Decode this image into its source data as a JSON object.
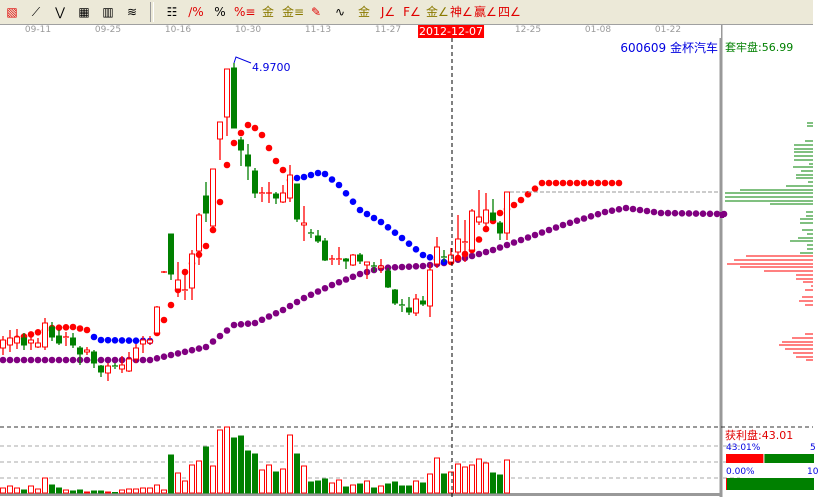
{
  "toolbar": {
    "icons": [
      {
        "name": "draw-tools-icon",
        "glyph": "▧",
        "color": "red"
      },
      {
        "name": "fan-lines-icon",
        "glyph": "⟋",
        "color": ""
      },
      {
        "name": "zigzag-icon",
        "glyph": "⋁",
        "color": ""
      },
      {
        "name": "grid-icon",
        "glyph": "▦",
        "color": ""
      },
      {
        "name": "grid-arrow-icon",
        "glyph": "▥",
        "color": ""
      },
      {
        "name": "parallel-lines-icon",
        "glyph": "≋",
        "color": ""
      },
      {
        "name": "price-table-icon",
        "glyph": "☷",
        "color": ""
      },
      {
        "name": "percent-chart-icon",
        "glyph": "∕%",
        "color": "red"
      },
      {
        "name": "percent-icon",
        "glyph": "%",
        "color": ""
      },
      {
        "name": "percent-lines-icon",
        "glyph": "%≡",
        "color": "red"
      },
      {
        "name": "gold-circle-icon",
        "glyph": "金",
        "color": "gold"
      },
      {
        "name": "gold-lines-icon",
        "glyph": "金≡",
        "color": "gold"
      },
      {
        "name": "marker-icon",
        "glyph": "✎",
        "color": "red"
      },
      {
        "name": "sine-wave-icon",
        "glyph": "∿",
        "color": ""
      },
      {
        "name": "gold-box-icon",
        "glyph": "金",
        "color": "gold"
      },
      {
        "name": "j-fan-icon",
        "glyph": "J∠",
        "color": "red"
      },
      {
        "name": "f-fan-icon",
        "glyph": "F∠",
        "color": "red"
      },
      {
        "name": "gold-fan-icon",
        "glyph": "金∠",
        "color": "gold"
      },
      {
        "name": "shen-fan-icon",
        "glyph": "神∠",
        "color": "red"
      },
      {
        "name": "ying-fan-icon",
        "glyph": "赢∠",
        "color": "red"
      },
      {
        "name": "four-fan-icon",
        "glyph": "四∠",
        "color": "red"
      }
    ]
  },
  "dates": [
    "09-11",
    "09-25",
    "10-16",
    "10-30",
    "11-13",
    "11-27",
    "2012-12-07",
    "12-25",
    "01-08",
    "01-22"
  ],
  "header": {
    "stock": "600609  金杯汽车",
    "trapped": "套牢盘:56.99"
  },
  "annotation": {
    "high_label": "4.9700"
  },
  "chips_panel": {
    "profit_label": "获利盘:43.01",
    "profit_pct": "43.01%",
    "profit_pct_right": "5",
    "zero_pct": "0.00%",
    "zero_pct_right": "10",
    "profit_fraction": 0.4301,
    "zero_fraction": 0.0
  },
  "colors": {
    "up": "#ff0000",
    "down": "#008000",
    "sar_up": "#ff0000",
    "sar_down": "#0000ff",
    "ma": "#800080",
    "annotation": "#0000e0"
  },
  "chart_data": {
    "type": "candlestick",
    "ohlc": [
      [
        2.12,
        2.24,
        2.05,
        2.2
      ],
      [
        2.15,
        2.3,
        2.08,
        2.22
      ],
      [
        2.17,
        2.31,
        2.11,
        2.23
      ],
      [
        2.22,
        2.27,
        2.1,
        2.15
      ],
      [
        2.17,
        2.27,
        2.1,
        2.2
      ],
      [
        2.13,
        2.22,
        2.12,
        2.17
      ],
      [
        2.13,
        2.42,
        2.1,
        2.37
      ],
      [
        2.33,
        2.38,
        2.19,
        2.23
      ],
      [
        2.24,
        2.3,
        2.15,
        2.17
      ],
      [
        2.22,
        2.28,
        2.14,
        2.23
      ],
      [
        2.22,
        2.27,
        2.12,
        2.15
      ],
      [
        2.12,
        2.14,
        1.95,
        2.06
      ],
      [
        2.08,
        2.13,
        2.05,
        2.1
      ],
      [
        2.08,
        2.1,
        1.92,
        1.97
      ],
      [
        1.94,
        1.95,
        1.83,
        1.88
      ],
      [
        1.87,
        1.97,
        1.79,
        1.94
      ],
      [
        1.94,
        1.97,
        1.91,
        1.93
      ],
      [
        1.91,
        2.04,
        1.87,
        1.95
      ],
      [
        1.89,
        2.08,
        1.88,
        2.01
      ],
      [
        2.01,
        2.16,
        1.97,
        2.12
      ],
      [
        2.16,
        2.24,
        2.07,
        2.2
      ],
      [
        2.17,
        2.24,
        2.15,
        2.2
      ],
      [
        2.27,
        2.54,
        2.25,
        2.53
      ],
      [
        2.88,
        2.89,
        2.87,
        2.88
      ],
      [
        3.26,
        3.26,
        2.8,
        2.86
      ],
      [
        2.71,
        2.98,
        2.63,
        2.8
      ],
      [
        2.69,
        2.86,
        2.6,
        2.7
      ],
      [
        2.72,
        3.1,
        2.6,
        3.06
      ],
      [
        3.09,
        3.47,
        2.95,
        3.45
      ],
      [
        3.64,
        3.78,
        3.38,
        3.47
      ],
      [
        3.34,
        3.91,
        3.33,
        3.91
      ],
      [
        4.21,
        4.38,
        4.0,
        4.38
      ],
      [
        4.43,
        4.91,
        4.24,
        4.91
      ],
      [
        4.92,
        4.97,
        4.32,
        4.32
      ],
      [
        4.2,
        4.23,
        3.94,
        4.1
      ],
      [
        4.05,
        4.16,
        3.8,
        3.94
      ],
      [
        3.89,
        3.92,
        3.62,
        3.67
      ],
      [
        3.66,
        3.73,
        3.58,
        3.67
      ],
      [
        3.67,
        3.78,
        3.57,
        3.67
      ],
      [
        3.66,
        3.68,
        3.56,
        3.62
      ],
      [
        3.58,
        3.75,
        3.57,
        3.67
      ],
      [
        3.62,
        3.95,
        3.58,
        3.85
      ],
      [
        3.76,
        3.76,
        3.38,
        3.41
      ],
      [
        3.35,
        3.54,
        3.19,
        3.37
      ],
      [
        3.27,
        3.31,
        3.22,
        3.26
      ],
      [
        3.24,
        3.3,
        3.17,
        3.19
      ],
      [
        3.19,
        3.22,
        2.99,
        3.0
      ],
      [
        3.0,
        3.05,
        2.95,
        3.01
      ],
      [
        3.0,
        3.13,
        2.95,
        3.01
      ],
      [
        3.01,
        3.02,
        2.91,
        2.99
      ],
      [
        2.95,
        3.06,
        2.94,
        3.05
      ],
      [
        3.05,
        3.07,
        2.96,
        2.99
      ],
      [
        2.95,
        2.98,
        2.81,
        2.98
      ],
      [
        2.94,
        2.98,
        2.88,
        2.93
      ],
      [
        2.92,
        3.01,
        2.87,
        2.94
      ],
      [
        2.89,
        2.92,
        2.72,
        2.73
      ],
      [
        2.7,
        2.71,
        2.55,
        2.57
      ],
      [
        2.55,
        2.61,
        2.48,
        2.54
      ],
      [
        2.52,
        2.63,
        2.45,
        2.48
      ],
      [
        2.47,
        2.66,
        2.44,
        2.61
      ],
      [
        2.59,
        2.64,
        2.54,
        2.56
      ],
      [
        2.54,
        2.96,
        2.43,
        2.9
      ],
      [
        2.96,
        3.23,
        2.92,
        3.13
      ],
      [
        3.03,
        3.1,
        2.98,
        3.02
      ],
      [
        2.98,
        3.12,
        2.95,
        3.05
      ],
      [
        3.08,
        3.45,
        3.05,
        3.21
      ],
      [
        3.17,
        3.4,
        2.98,
        3.18
      ],
      [
        3.1,
        3.51,
        3.08,
        3.49
      ],
      [
        3.38,
        3.7,
        3.35,
        3.43
      ],
      [
        3.37,
        3.67,
        3.34,
        3.5
      ],
      [
        3.47,
        3.61,
        3.39,
        3.4
      ],
      [
        3.37,
        3.39,
        3.2,
        3.27
      ],
      [
        3.27,
        3.68,
        3.2,
        3.68
      ]
    ],
    "volume": [
      5,
      7,
      5,
      3,
      7,
      4,
      15,
      8,
      5,
      3,
      2,
      3,
      1,
      2,
      2,
      1,
      0.5,
      3,
      4,
      4,
      5,
      5,
      8,
      3,
      38,
      20,
      12,
      28,
      32,
      46,
      27,
      63,
      66,
      55,
      57,
      42,
      39,
      23,
      28,
      21,
      24,
      58,
      39,
      27,
      11,
      12,
      14,
      10,
      13,
      6,
      8,
      9,
      12,
      5,
      7,
      9,
      11,
      7,
      7,
      12,
      10,
      19,
      35,
      19,
      21,
      29,
      26,
      28,
      34,
      30,
      20,
      18,
      33
    ],
    "sar_line": {
      "points": [
        [
          0,
          2.17
        ],
        [
          7,
          2.32
        ],
        [
          10,
          2.33
        ],
        [
          12,
          2.3
        ],
        [
          13,
          2.23
        ],
        [
          14,
          2.2
        ],
        [
          21,
          2.19
        ],
        [
          22,
          2.27
        ],
        [
          23,
          2.4
        ],
        [
          24,
          2.55
        ],
        [
          25,
          2.7
        ],
        [
          26,
          2.88
        ],
        [
          29,
          3.14
        ],
        [
          30,
          3.3
        ],
        [
          31,
          3.58
        ],
        [
          32,
          3.95
        ],
        [
          33,
          4.17
        ],
        [
          34,
          4.27
        ],
        [
          35,
          4.35
        ],
        [
          36,
          4.32
        ],
        [
          37,
          4.25
        ],
        [
          39,
          3.99
        ],
        [
          40,
          3.9
        ],
        [
          41,
          3.8
        ],
        [
          42,
          3.82
        ],
        [
          43,
          3.83
        ],
        [
          45,
          3.87
        ],
        [
          46,
          3.86
        ],
        [
          48,
          3.75
        ],
        [
          51,
          3.5
        ],
        [
          54,
          3.38
        ],
        [
          57,
          3.22
        ],
        [
          60,
          3.05
        ],
        [
          63,
          2.98
        ],
        [
          64,
          2.98
        ],
        [
          67,
          3.1
        ],
        [
          69,
          3.31
        ],
        [
          71,
          3.47
        ],
        [
          73,
          3.55
        ],
        [
          74,
          3.6
        ],
        [
          77,
          3.77
        ],
        [
          88,
          3.77
        ]
      ],
      "segments": [
        {
          "from": 0,
          "to": 12,
          "dir": "up"
        },
        {
          "from": 13,
          "to": 21,
          "dir": "down"
        },
        {
          "from": 22,
          "to": 41,
          "dir": "up"
        },
        {
          "from": 42,
          "to": 63,
          "dir": "down"
        },
        {
          "from": 64,
          "to": 88,
          "dir": "up"
        }
      ]
    },
    "ma_line": [
      [
        0,
        2.0
      ],
      [
        21,
        2.0
      ],
      [
        24,
        2.05
      ],
      [
        29,
        2.13
      ],
      [
        33,
        2.35
      ],
      [
        36,
        2.37
      ],
      [
        40,
        2.5
      ],
      [
        43,
        2.62
      ],
      [
        47,
        2.75
      ],
      [
        51,
        2.86
      ],
      [
        54,
        2.92
      ],
      [
        57,
        2.93
      ],
      [
        60,
        2.94
      ],
      [
        63,
        2.97
      ],
      [
        66,
        3.02
      ],
      [
        70,
        3.1
      ],
      [
        74,
        3.2
      ],
      [
        80,
        3.35
      ],
      [
        86,
        3.48
      ],
      [
        89,
        3.52
      ],
      [
        91,
        3.5
      ],
      [
        94,
        3.47
      ],
      [
        103,
        3.46
      ]
    ],
    "high_marker": {
      "index": 33,
      "price": 4.97
    },
    "cursor_index": 64,
    "last_close": 3.68,
    "chip_distribution": [
      [
        4.37,
        6,
        "down"
      ],
      [
        4.34,
        6,
        "down"
      ],
      [
        4.19,
        8,
        "down"
      ],
      [
        4.15,
        19,
        "down"
      ],
      [
        4.11,
        19,
        "down"
      ],
      [
        4.08,
        19,
        "down"
      ],
      [
        4.04,
        19,
        "down"
      ],
      [
        4.0,
        19,
        "down"
      ],
      [
        3.96,
        4,
        "down"
      ],
      [
        3.93,
        20,
        "down"
      ],
      [
        3.89,
        12,
        "down"
      ],
      [
        3.85,
        17,
        "down"
      ],
      [
        3.82,
        17,
        "down"
      ],
      [
        3.78,
        5,
        "down"
      ],
      [
        3.74,
        27,
        "down"
      ],
      [
        3.7,
        73,
        "down"
      ],
      [
        3.67,
        88,
        "down"
      ],
      [
        3.63,
        88,
        "down"
      ],
      [
        3.59,
        88,
        "down"
      ],
      [
        3.56,
        43,
        "down"
      ],
      [
        3.48,
        7,
        "down"
      ],
      [
        3.44,
        7,
        "down"
      ],
      [
        3.41,
        13,
        "down"
      ],
      [
        3.37,
        13,
        "down"
      ],
      [
        3.3,
        11,
        "down"
      ],
      [
        3.26,
        6,
        "down"
      ],
      [
        3.22,
        15,
        "down"
      ],
      [
        3.19,
        23,
        "down"
      ],
      [
        3.15,
        6,
        "down"
      ],
      [
        3.11,
        6,
        "down"
      ],
      [
        3.07,
        13,
        "down"
      ],
      [
        3.04,
        67,
        "up"
      ],
      [
        3.0,
        79,
        "up"
      ],
      [
        2.96,
        86,
        "up"
      ],
      [
        2.93,
        73,
        "up"
      ],
      [
        2.89,
        49,
        "up"
      ],
      [
        2.85,
        17,
        "up"
      ],
      [
        2.81,
        17,
        "up"
      ],
      [
        2.78,
        10,
        "up"
      ],
      [
        2.74,
        2,
        "up"
      ],
      [
        2.7,
        8,
        "up"
      ],
      [
        2.63,
        11,
        "up"
      ],
      [
        2.59,
        14,
        "up"
      ],
      [
        2.55,
        8,
        "up"
      ],
      [
        2.26,
        8,
        "up"
      ],
      [
        2.22,
        21,
        "up"
      ],
      [
        2.18,
        31,
        "up"
      ],
      [
        2.15,
        34,
        "up"
      ],
      [
        2.11,
        28,
        "up"
      ],
      [
        2.07,
        20,
        "up"
      ],
      [
        2.03,
        17,
        "up"
      ],
      [
        2.0,
        7,
        "up"
      ]
    ],
    "chip_avg_price": 3.45
  }
}
